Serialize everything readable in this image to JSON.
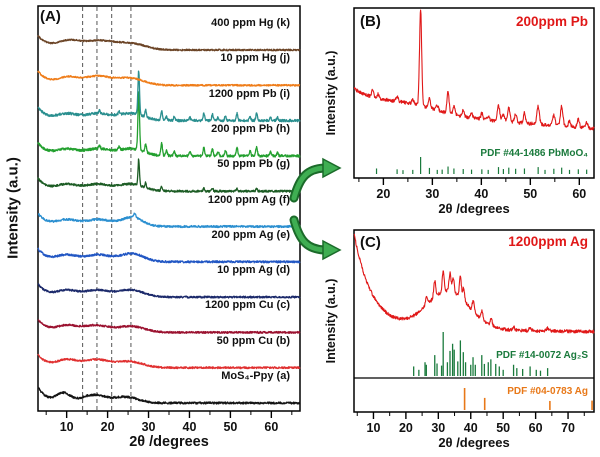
{
  "figure": {
    "background": "#ffffff",
    "arrow_color": "#3fae52",
    "arrow_outline": "#1b6b2a"
  },
  "chart_data": [
    {
      "id": "A",
      "type": "line",
      "panel_tag": "(A)",
      "xlabel": "2θ /degrees",
      "ylabel": "Intensity (a.u.)",
      "x_range": [
        3,
        67
      ],
      "x_major_ticks": [
        10,
        20,
        30,
        40,
        50,
        60
      ],
      "x_minor_step": 5,
      "dashed_guides": [
        13.9,
        17.4,
        21.0,
        25.7
      ],
      "series": [
        {
          "key": "a",
          "name": "MoS₄-Ppy (a)",
          "color": "#141414",
          "bg": [
            16,
            2.2
          ],
          "humps": [
            [
              9.2,
              1.7,
              9
            ],
            [
              16.5,
              3.0,
              8
            ],
            [
              24.5,
              3.0,
              6
            ]
          ],
          "peaks": [],
          "noise": 1.0,
          "seed": 1
        },
        {
          "key": "b",
          "name": "50 ppm Cu (b)",
          "color": "#e03030",
          "bg": [
            13,
            2.4
          ],
          "humps": [
            [
              10,
              2.4,
              7
            ],
            [
              17.2,
              3.3,
              8
            ],
            [
              25.5,
              3.2,
              6
            ]
          ],
          "peaks": [],
          "noise": 0.9,
          "seed": 2
        },
        {
          "key": "c",
          "name": "1200 ppm Cu (c)",
          "color": "#9b1230",
          "bg": [
            13,
            2.4
          ],
          "humps": [
            [
              10,
              2.4,
              6
            ],
            [
              17,
              3.3,
              7
            ],
            [
              25.8,
              3.2,
              6
            ]
          ],
          "peaks": [],
          "noise": 0.9,
          "seed": 3
        },
        {
          "key": "d",
          "name": "10 ppm Ag (d)",
          "color": "#1c2a6b",
          "bg": [
            13,
            2.4
          ],
          "humps": [
            [
              10,
              2.4,
              6
            ],
            [
              17.4,
              3.3,
              7
            ],
            [
              25.8,
              3.0,
              7
            ]
          ],
          "peaks": [],
          "noise": 0.9,
          "seed": 4
        },
        {
          "key": "e",
          "name": "200 ppm Ag (e)",
          "color": "#2257c4",
          "bg": [
            13,
            2.4
          ],
          "humps": [
            [
              10,
              2.4,
              6
            ],
            [
              17.6,
              3.3,
              7
            ],
            [
              26,
              2.8,
              8
            ]
          ],
          "peaks": [],
          "noise": 1.0,
          "seed": 5
        },
        {
          "key": "f",
          "name": "1200 ppm Ag (f)",
          "color": "#2b8fd0",
          "bg": [
            13,
            2.4
          ],
          "humps": [
            [
              10,
              2.4,
              6
            ],
            [
              17.6,
              3.3,
              7
            ],
            [
              26,
              2.6,
              9
            ]
          ],
          "peaks": [
            [
              26.6,
              0.3,
              4
            ]
          ],
          "noise": 1.0,
          "seed": 6
        },
        {
          "key": "g",
          "name": "50 ppm Pb (g)",
          "color": "#1c5c24",
          "bg": [
            13,
            2.4
          ],
          "humps": [
            [
              10,
              2.4,
              6
            ],
            [
              17.4,
              3.3,
              7
            ],
            [
              25.8,
              3.0,
              7
            ]
          ],
          "peaks": [
            [
              27.6,
              0.18,
              26
            ],
            [
              29.3,
              0.18,
              5
            ],
            [
              33.2,
              0.18,
              4
            ],
            [
              43.5,
              0.18,
              3
            ],
            [
              45.6,
              0.18,
              3
            ],
            [
              51.6,
              0.18,
              3
            ],
            [
              56.4,
              0.18,
              3
            ]
          ],
          "noise": 1.0,
          "seed": 7
        },
        {
          "key": "h",
          "name": "200 ppm Pb (h)",
          "color": "#23a02f",
          "bg": [
            13,
            2.4
          ],
          "humps": [
            [
              10,
              2.4,
              6
            ],
            [
              17.4,
              3.3,
              7
            ],
            [
              25.8,
              3.0,
              7
            ]
          ],
          "peaks": [
            [
              18.0,
              0.2,
              4
            ],
            [
              22.8,
              0.2,
              3
            ],
            [
              27.6,
              0.2,
              58
            ],
            [
              29.3,
              0.2,
              8
            ],
            [
              33.2,
              0.2,
              12
            ],
            [
              34.4,
              0.2,
              5
            ],
            [
              36.3,
              0.2,
              4
            ],
            [
              40.1,
              0.2,
              4
            ],
            [
              43.5,
              0.2,
              8
            ],
            [
              45.6,
              0.2,
              7
            ],
            [
              47.0,
              0.2,
              4
            ],
            [
              48.8,
              0.2,
              5
            ],
            [
              51.6,
              0.2,
              9
            ],
            [
              54.8,
              0.2,
              5
            ],
            [
              56.4,
              0.2,
              9
            ],
            [
              59.8,
              0.2,
              4
            ],
            [
              61.5,
              0.2,
              3
            ]
          ],
          "noise": 1.2,
          "seed": 8
        },
        {
          "key": "i",
          "name": "1200 ppm Pb (i)",
          "color": "#2a8f8f",
          "bg": [
            13,
            2.4
          ],
          "humps": [
            [
              10,
              2.4,
              6
            ],
            [
              17.4,
              3.3,
              7
            ],
            [
              25.8,
              3.0,
              7
            ]
          ],
          "peaks": [
            [
              18.0,
              0.2,
              3
            ],
            [
              22.8,
              0.2,
              3
            ],
            [
              27.6,
              0.2,
              44
            ],
            [
              29.3,
              0.2,
              7
            ],
            [
              33.2,
              0.2,
              9
            ],
            [
              34.4,
              0.2,
              4
            ],
            [
              36.3,
              0.2,
              4
            ],
            [
              40.1,
              0.2,
              3
            ],
            [
              43.5,
              0.2,
              7
            ],
            [
              45.6,
              0.2,
              6
            ],
            [
              47.0,
              0.2,
              3
            ],
            [
              48.8,
              0.2,
              4
            ],
            [
              51.6,
              0.2,
              7
            ],
            [
              54.8,
              0.2,
              4
            ],
            [
              56.4,
              0.2,
              7
            ],
            [
              59.8,
              0.2,
              3
            ],
            [
              61.5,
              0.2,
              3
            ]
          ],
          "noise": 1.2,
          "seed": 9
        },
        {
          "key": "j",
          "name": "10 ppm Hg (j)",
          "color": "#ef7d1a",
          "bg": [
            14,
            2.6
          ],
          "humps": [
            [
              10.3,
              2.5,
              7
            ],
            [
              17.5,
              3.4,
              9
            ],
            [
              25.6,
              3.2,
              7
            ]
          ],
          "peaks": [],
          "noise": 0.8,
          "seed": 10
        },
        {
          "key": "k",
          "name": "400 ppm Hg (k)",
          "color": "#6b4426",
          "bg": [
            14,
            2.8
          ],
          "humps": [
            [
              10.5,
              2.8,
              8
            ],
            [
              18,
              3.8,
              9
            ],
            [
              26,
              3.4,
              6
            ]
          ],
          "peaks": [],
          "noise": 0.8,
          "seed": 11
        }
      ]
    },
    {
      "id": "B",
      "type": "line",
      "panel_tag": "(B)",
      "title": "200ppm Pb",
      "title_color": "#e01818",
      "xlabel": "2θ /degrees",
      "ylabel": "Intensity (a.u.)",
      "x_range": [
        14,
        63
      ],
      "x_major_ticks": [
        20,
        30,
        40,
        50,
        60
      ],
      "x_minor_step": 5,
      "curve": {
        "color": "#e01818",
        "bg": [
          20,
          6
        ],
        "slope": [
          30,
          -0.38
        ],
        "humps": [
          [
            25,
            6,
            8
          ]
        ],
        "peaks": [
          [
            17.8,
            0.22,
            7
          ],
          [
            18.9,
            0.22,
            4
          ],
          [
            22.8,
            0.22,
            5
          ],
          [
            26.0,
            0.22,
            4
          ],
          [
            27.6,
            0.22,
            96
          ],
          [
            29.4,
            0.22,
            11
          ],
          [
            31.0,
            0.22,
            5
          ],
          [
            33.2,
            0.22,
            22
          ],
          [
            34.4,
            0.22,
            9
          ],
          [
            36.3,
            0.22,
            7
          ],
          [
            38.0,
            0.22,
            5
          ],
          [
            40.1,
            0.22,
            6
          ],
          [
            41.4,
            0.22,
            4
          ],
          [
            43.5,
            0.25,
            16
          ],
          [
            44.5,
            0.22,
            8
          ],
          [
            45.6,
            0.25,
            14
          ],
          [
            47.0,
            0.22,
            8
          ],
          [
            48.8,
            0.22,
            10
          ],
          [
            51.6,
            0.25,
            18
          ],
          [
            54.8,
            0.25,
            10
          ],
          [
            56.4,
            0.25,
            20
          ],
          [
            58.0,
            0.22,
            6
          ],
          [
            59.8,
            0.22,
            8
          ],
          [
            61.5,
            0.22,
            6
          ]
        ],
        "noise": 1.7,
        "seed": 42
      },
      "reference": {
        "label": "PDF #44-1486 PbMoO₄",
        "color": "#1a7a3c",
        "peaks": [
          [
            18.6,
            18
          ],
          [
            22.8,
            12
          ],
          [
            24.0,
            6
          ],
          [
            26.0,
            8
          ],
          [
            27.6,
            100
          ],
          [
            29.4,
            22
          ],
          [
            31.0,
            8
          ],
          [
            32.0,
            10
          ],
          [
            33.2,
            32
          ],
          [
            34.4,
            18
          ],
          [
            36.3,
            14
          ],
          [
            38.0,
            10
          ],
          [
            40.1,
            12
          ],
          [
            41.4,
            8
          ],
          [
            43.5,
            28
          ],
          [
            44.5,
            14
          ],
          [
            45.6,
            24
          ],
          [
            47.0,
            16
          ],
          [
            48.8,
            18
          ],
          [
            51.6,
            28
          ],
          [
            53.0,
            8
          ],
          [
            54.8,
            16
          ],
          [
            56.4,
            24
          ],
          [
            58.0,
            8
          ],
          [
            59.8,
            12
          ],
          [
            61.5,
            10
          ]
        ]
      }
    },
    {
      "id": "C",
      "type": "line",
      "panel_tag": "(C)",
      "title": "1200ppm Ag",
      "title_color": "#e01818",
      "xlabel": "2θ /degrees",
      "ylabel": "Intensity (a.u.)",
      "x_range": [
        4,
        78
      ],
      "x_major_ticks": [
        10,
        20,
        30,
        40,
        50,
        60,
        70
      ],
      "x_minor_step": 5,
      "curve": {
        "color": "#e01818",
        "bg": [
          95,
          5.5
        ],
        "slope": [
          6,
          -0.05
        ],
        "humps": [
          [
            33,
            6.5,
            38
          ]
        ],
        "peaks": [
          [
            26.3,
            0.3,
            8
          ],
          [
            28.9,
            0.3,
            16
          ],
          [
            31.5,
            0.3,
            20
          ],
          [
            33.6,
            0.3,
            18
          ],
          [
            34.6,
            0.3,
            14
          ],
          [
            36.8,
            0.3,
            22
          ],
          [
            37.8,
            0.3,
            12
          ],
          [
            40.8,
            0.3,
            11
          ],
          [
            43.5,
            0.3,
            9
          ],
          [
            46.3,
            0.3,
            7
          ],
          [
            53.2,
            0.35,
            3
          ],
          [
            58.3,
            0.35,
            3
          ],
          [
            63.8,
            0.35,
            3
          ]
        ],
        "noise": 1.6,
        "seed": 77
      },
      "references": [
        {
          "label": "PDF #14-0072 Ag₂S",
          "color": "#1a7a3c",
          "peaks": [
            [
              22.4,
              18
            ],
            [
              24.0,
              10
            ],
            [
              25.9,
              28
            ],
            [
              26.3,
              22
            ],
            [
              28.9,
              45
            ],
            [
              29.6,
              25
            ],
            [
              31.0,
              20
            ],
            [
              31.5,
              100
            ],
            [
              32.8,
              28
            ],
            [
              33.6,
              55
            ],
            [
              34.4,
              72
            ],
            [
              34.9,
              58
            ],
            [
              36.0,
              30
            ],
            [
              36.8,
              80
            ],
            [
              37.7,
              52
            ],
            [
              38.4,
              28
            ],
            [
              40.0,
              22
            ],
            [
              40.7,
              40
            ],
            [
              41.4,
              22
            ],
            [
              43.4,
              45
            ],
            [
              44.2,
              24
            ],
            [
              45.4,
              28
            ],
            [
              46.2,
              35
            ],
            [
              47.7,
              24
            ],
            [
              48.8,
              18
            ],
            [
              50.0,
              10
            ],
            [
              53.2,
              22
            ],
            [
              54.2,
              14
            ],
            [
              56.0,
              12
            ],
            [
              58.3,
              18
            ],
            [
              60.2,
              10
            ],
            [
              61.5,
              8
            ],
            [
              63.7,
              14
            ]
          ]
        },
        {
          "label": "PDF #04-0783 Ag",
          "color": "#e87818",
          "peaks": [
            [
              38.1,
              100
            ],
            [
              44.3,
              45
            ],
            [
              64.4,
              28
            ],
            [
              77.4,
              30
            ]
          ]
        }
      ]
    }
  ]
}
